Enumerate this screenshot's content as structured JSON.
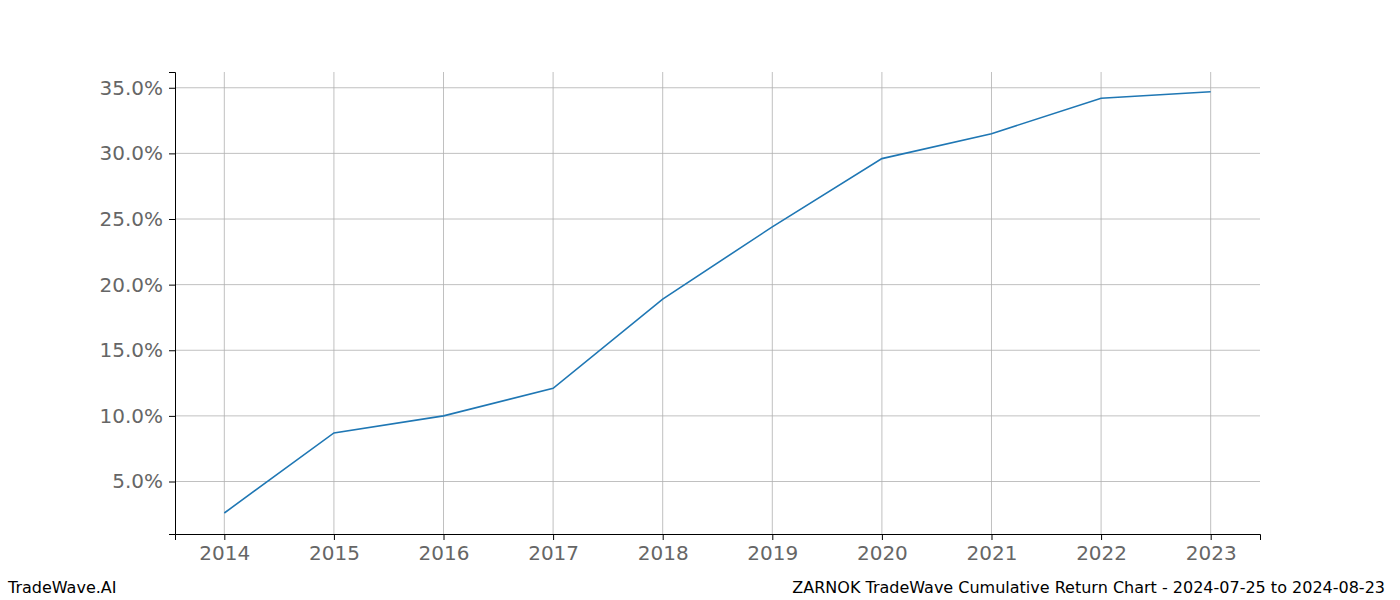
{
  "chart_data": {
    "type": "line",
    "title": "ZARNOK TradeWave Cumulative Return Chart - 2024-07-25 to 2024-08-23",
    "annotations": [
      "TradeWave.AI"
    ],
    "x": [
      2014,
      2015,
      2016,
      2017,
      2018,
      2019,
      2020,
      2021,
      2022,
      2023
    ],
    "values": [
      2.6,
      8.7,
      10.0,
      12.1,
      18.9,
      24.4,
      29.6,
      31.5,
      34.2,
      34.7
    ],
    "color": "#1f77b4",
    "xlim": [
      2013.55,
      2023.45
    ],
    "xticks": [
      2014,
      2015,
      2016,
      2017,
      2018,
      2019,
      2020,
      2021,
      2022,
      2023
    ],
    "ylim": [
      1.0,
      36.2
    ],
    "yticks": [
      {
        "value": 5,
        "label": "5.0%"
      },
      {
        "value": 10,
        "label": "10.0%"
      },
      {
        "value": 15,
        "label": "15.0%"
      },
      {
        "value": 20,
        "label": "20.0%"
      },
      {
        "value": 25,
        "label": "25.0%"
      },
      {
        "value": 30,
        "label": "30.0%"
      },
      {
        "value": 35,
        "label": "35.0%"
      }
    ],
    "grid": true
  }
}
